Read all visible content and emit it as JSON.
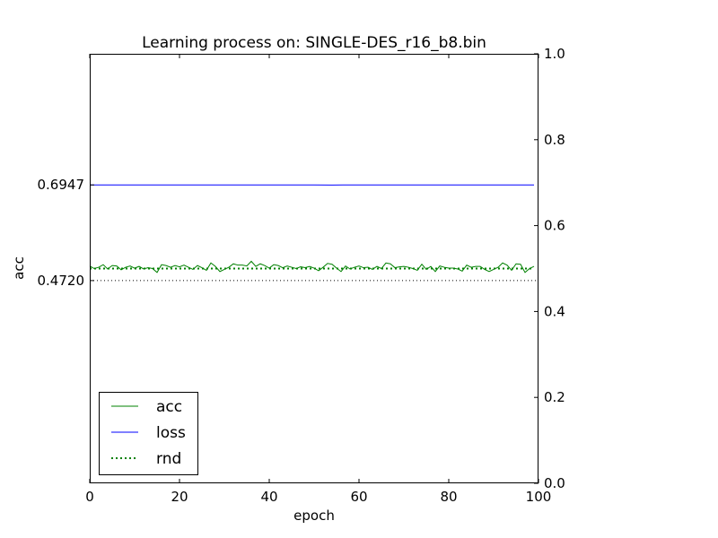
{
  "chart_data": {
    "type": "line",
    "title": "Learning process on: SINGLE-DES_r16_b8.bin",
    "xlabel": "epoch",
    "ylabel": "acc",
    "xlim": [
      0,
      100
    ],
    "ylim": [
      0,
      1
    ],
    "x_ticks": [
      "0",
      "20",
      "40",
      "60",
      "80",
      "100"
    ],
    "left_ticks": [
      {
        "value": 0.6947,
        "label": "0.6947"
      },
      {
        "value": 0.472,
        "label": "0.4720"
      }
    ],
    "right_ticks": [
      "0.0",
      "0.2",
      "0.4",
      "0.6",
      "0.8",
      "1.0"
    ],
    "grid": false,
    "legend_placement": "lower-left",
    "series": [
      {
        "name": "acc",
        "style": "solid",
        "color": "#008000",
        "x": [
          0,
          1,
          2,
          3,
          4,
          5,
          6,
          7,
          8,
          9,
          10,
          11,
          12,
          13,
          14,
          15,
          16,
          17,
          18,
          19,
          20,
          21,
          22,
          23,
          24,
          25,
          26,
          27,
          28,
          29,
          30,
          31,
          32,
          33,
          34,
          35,
          36,
          37,
          38,
          39,
          40,
          41,
          42,
          43,
          44,
          45,
          46,
          47,
          48,
          49,
          50,
          51,
          52,
          53,
          54,
          55,
          56,
          57,
          58,
          59,
          60,
          61,
          62,
          63,
          64,
          65,
          66,
          67,
          68,
          69,
          70,
          71,
          72,
          73,
          74,
          75,
          76,
          77,
          78,
          79,
          80,
          81,
          82,
          83,
          84,
          85,
          86,
          87,
          88,
          89,
          90,
          91,
          92,
          93,
          94,
          95,
          96,
          97,
          98,
          99
        ],
        "values": [
          0.506,
          0.5,
          0.503,
          0.509,
          0.499,
          0.507,
          0.506,
          0.497,
          0.503,
          0.506,
          0.501,
          0.505,
          0.499,
          0.502,
          0.5,
          0.491,
          0.509,
          0.507,
          0.503,
          0.507,
          0.504,
          0.508,
          0.503,
          0.498,
          0.507,
          0.502,
          0.496,
          0.513,
          0.505,
          0.493,
          0.498,
          0.503,
          0.511,
          0.508,
          0.508,
          0.506,
          0.517,
          0.505,
          0.511,
          0.507,
          0.501,
          0.509,
          0.507,
          0.502,
          0.506,
          0.503,
          0.5,
          0.504,
          0.502,
          0.505,
          0.501,
          0.495,
          0.503,
          0.512,
          0.51,
          0.501,
          0.493,
          0.506,
          0.499,
          0.503,
          0.506,
          0.502,
          0.503,
          0.498,
          0.505,
          0.5,
          0.513,
          0.511,
          0.502,
          0.504,
          0.505,
          0.503,
          0.5,
          0.496,
          0.51,
          0.498,
          0.505,
          0.493,
          0.506,
          0.503,
          0.501,
          0.501,
          0.499,
          0.494,
          0.508,
          0.503,
          0.505,
          0.505,
          0.498,
          0.493,
          0.498,
          0.503,
          0.513,
          0.508,
          0.496,
          0.511,
          0.51,
          0.491,
          0.5,
          0.505
        ]
      },
      {
        "name": "loss",
        "style": "solid",
        "color": "#0000ff",
        "x": [
          0,
          10,
          20,
          30,
          40,
          50,
          54,
          60,
          70,
          80,
          90,
          99
        ],
        "values": [
          0.6948,
          0.6947,
          0.6946,
          0.6947,
          0.6947,
          0.6946,
          0.6945,
          0.6947,
          0.6946,
          0.6947,
          0.6946,
          0.6947
        ]
      },
      {
        "name": "rnd",
        "style": "dotted",
        "color": "#008000",
        "x": [
          0,
          99
        ],
        "values": [
          0.5,
          0.5
        ]
      }
    ],
    "reference_line": {
      "value": 0.472,
      "style": "dotted",
      "color": "#000000"
    }
  }
}
